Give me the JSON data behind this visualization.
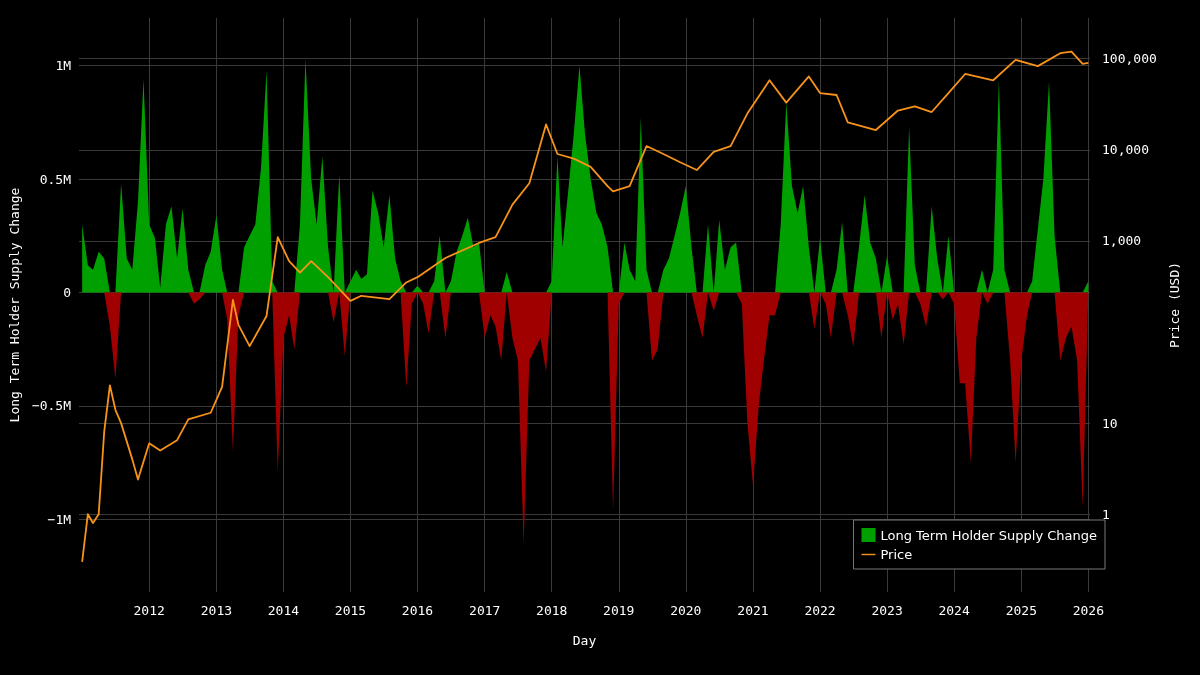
{
  "chart_data": {
    "type": "area",
    "xlabel": "Day",
    "ylabel": "Long Term Holder Supply Change",
    "y2label": "Price (USD)",
    "xlim": [
      "2010-12-15",
      "2026-01-10"
    ],
    "xticks": [
      "2012",
      "2013",
      "2014",
      "2015",
      "2016",
      "2017",
      "2018",
      "2019",
      "2020",
      "2021",
      "2022",
      "2023",
      "2024",
      "2025",
      "2026"
    ],
    "ylim": [
      -1320000,
      1210000
    ],
    "yticks": [
      {
        "value": -1000000,
        "label": "−1M"
      },
      {
        "value": -500000,
        "label": "−0.5M"
      },
      0,
      {
        "value": 500000,
        "label": "0.5M"
      },
      {
        "value": 1000000,
        "label": "1M"
      }
    ],
    "y2lim": [
      0.14,
      280000
    ],
    "y2ticks": [
      1,
      10,
      {
        "value": 1000,
        "label": "1,000"
      },
      {
        "value": 10000,
        "label": "10,000"
      },
      {
        "value": 100000,
        "label": "100,000"
      }
    ],
    "log": "y2",
    "grid": true,
    "legend": "bottom right",
    "marker": "none",
    "x": [
      "2011-01",
      "2011-02",
      "2011-03",
      "2011-04",
      "2011-05",
      "2011-06",
      "2011-07",
      "2011-08",
      "2011-09",
      "2011-10",
      "2011-11",
      "2011-12",
      "2012-01",
      "2012-02",
      "2012-03",
      "2012-04",
      "2012-05",
      "2012-06",
      "2012-07",
      "2012-08",
      "2012-09",
      "2012-10",
      "2012-11",
      "2012-12",
      "2013-01",
      "2013-02",
      "2013-03",
      "2013-04",
      "2013-05",
      "2013-06",
      "2013-07",
      "2013-08",
      "2013-09",
      "2013-10",
      "2013-11",
      "2013-12",
      "2014-01",
      "2014-02",
      "2014-03",
      "2014-04",
      "2014-05",
      "2014-06",
      "2014-07",
      "2014-08",
      "2014-09",
      "2014-10",
      "2014-11",
      "2014-12",
      "2015-01",
      "2015-02",
      "2015-03",
      "2015-04",
      "2015-05",
      "2015-06",
      "2015-07",
      "2015-08",
      "2015-09",
      "2015-10",
      "2015-11",
      "2015-12",
      "2016-01",
      "2016-02",
      "2016-03",
      "2016-04",
      "2016-05",
      "2016-06",
      "2016-07",
      "2016-08",
      "2016-09",
      "2016-10",
      "2016-11",
      "2016-12",
      "2017-01",
      "2017-02",
      "2017-03",
      "2017-04",
      "2017-05",
      "2017-06",
      "2017-07",
      "2017-08",
      "2017-09",
      "2017-10",
      "2017-11",
      "2017-12",
      "2018-01",
      "2018-02",
      "2018-03",
      "2018-04",
      "2018-05",
      "2018-06",
      "2018-07",
      "2018-08",
      "2018-09",
      "2018-10",
      "2018-11",
      "2018-12",
      "2019-01",
      "2019-02",
      "2019-03",
      "2019-04",
      "2019-05",
      "2019-06",
      "2019-07",
      "2019-08",
      "2019-09",
      "2019-10",
      "2019-11",
      "2019-12",
      "2020-01",
      "2020-02",
      "2020-03",
      "2020-04",
      "2020-05",
      "2020-06",
      "2020-07",
      "2020-08",
      "2020-09",
      "2020-10",
      "2020-11",
      "2020-12",
      "2021-01",
      "2021-02",
      "2021-03",
      "2021-04",
      "2021-05",
      "2021-06",
      "2021-07",
      "2021-08",
      "2021-09",
      "2021-10",
      "2021-11",
      "2021-12",
      "2022-01",
      "2022-02",
      "2022-03",
      "2022-04",
      "2022-05",
      "2022-06",
      "2022-07",
      "2022-08",
      "2022-09",
      "2022-10",
      "2022-11",
      "2022-12",
      "2023-01",
      "2023-02",
      "2023-03",
      "2023-04",
      "2023-05",
      "2023-06",
      "2023-07",
      "2023-08",
      "2023-09",
      "2023-10",
      "2023-11",
      "2023-12",
      "2024-01",
      "2024-02",
      "2024-03",
      "2024-04",
      "2024-05",
      "2024-06",
      "2024-07",
      "2024-08",
      "2024-09",
      "2024-10",
      "2024-11",
      "2024-12",
      "2025-01",
      "2025-02",
      "2025-03",
      "2025-04",
      "2025-05",
      "2025-06",
      "2025-07",
      "2025-08",
      "2025-09",
      "2025-10",
      "2025-11",
      "2025-12",
      "2026-01"
    ],
    "series": [
      {
        "name": "Long Term Holder Supply Change",
        "color": "#00a000",
        "values": [
          300000,
          120000,
          100000,
          180000,
          150000,
          0,
          0,
          480000,
          150000,
          100000,
          400000,
          940000,
          300000,
          240000,
          20000,
          300000,
          380000,
          150000,
          370000,
          100000,
          0,
          0,
          120000,
          180000,
          340000,
          100000,
          0,
          0,
          0,
          200000,
          250000,
          300000,
          550000,
          980000,
          50000,
          0,
          0,
          0,
          0,
          300000,
          1030000,
          500000,
          300000,
          600000,
          200000,
          0,
          520000,
          0,
          50000,
          100000,
          60000,
          80000,
          450000,
          350000,
          200000,
          430000,
          150000,
          50000,
          0,
          0,
          30000,
          0,
          0,
          50000,
          250000,
          0,
          50000,
          180000,
          250000,
          330000,
          200000,
          220000,
          0,
          0,
          0,
          0,
          90000,
          0,
          0,
          0,
          0,
          0,
          0,
          0,
          50000,
          600000,
          200000,
          450000,
          700000,
          1000000,
          700000,
          500000,
          350000,
          300000,
          200000,
          0,
          0,
          220000,
          100000,
          50000,
          770000,
          100000,
          0,
          0,
          100000,
          150000,
          250000,
          350000,
          470000,
          200000,
          0,
          0,
          300000,
          0,
          320000,
          100000,
          200000,
          220000,
          0,
          0,
          0,
          0,
          0,
          0,
          0,
          300000,
          840000,
          470000,
          350000,
          470000,
          200000,
          0,
          240000,
          0,
          0,
          100000,
          310000,
          0,
          0,
          200000,
          430000,
          220000,
          150000,
          0,
          160000,
          0,
          0,
          0,
          730000,
          120000,
          0,
          0,
          380000,
          150000,
          0,
          250000,
          0,
          0,
          0,
          0,
          0,
          100000,
          0,
          100000,
          940000,
          100000,
          0,
          0,
          0,
          0,
          50000,
          280000,
          500000,
          930000,
          250000,
          0,
          0,
          0,
          0,
          0,
          50000
        ]
      },
      {
        "color": "#a00000",
        "values": [
          0,
          0,
          0,
          0,
          0,
          -150000,
          -380000,
          0,
          0,
          0,
          0,
          0,
          0,
          0,
          0,
          0,
          0,
          0,
          0,
          0,
          -50000,
          -30000,
          0,
          0,
          0,
          0,
          -120000,
          -700000,
          -100000,
          0,
          0,
          0,
          0,
          0,
          0,
          -790000,
          -200000,
          -100000,
          -250000,
          0,
          0,
          0,
          0,
          0,
          0,
          -130000,
          0,
          -280000,
          0,
          0,
          0,
          0,
          0,
          0,
          0,
          0,
          0,
          0,
          -420000,
          -50000,
          0,
          -50000,
          -180000,
          0,
          0,
          -200000,
          0,
          0,
          0,
          0,
          0,
          0,
          -200000,
          -100000,
          -150000,
          -300000,
          0,
          -200000,
          -300000,
          -1110000,
          -300000,
          -250000,
          -200000,
          -350000,
          0,
          0,
          0,
          0,
          0,
          0,
          0,
          0,
          0,
          0,
          0,
          -960000,
          -50000,
          0,
          0,
          0,
          0,
          0,
          -300000,
          -250000,
          0,
          0,
          0,
          0,
          0,
          0,
          -100000,
          -200000,
          0,
          -80000,
          0,
          0,
          0,
          0,
          -50000,
          -570000,
          -850000,
          -500000,
          -300000,
          -100000,
          -100000,
          0,
          0,
          0,
          0,
          0,
          0,
          -160000,
          0,
          -50000,
          -200000,
          0,
          0,
          -100000,
          -240000,
          0,
          0,
          0,
          0,
          -200000,
          0,
          -120000,
          -50000,
          -230000,
          0,
          0,
          -50000,
          -150000,
          0,
          0,
          -30000,
          0,
          -50000,
          -400000,
          -400000,
          -750000,
          -200000,
          0,
          -50000,
          0,
          0,
          0,
          -300000,
          -750000,
          -300000,
          -100000,
          0,
          0,
          0,
          0,
          0,
          -300000,
          -200000,
          -150000,
          -300000,
          -950000,
          0
        ]
      },
      {
        "name": "Price",
        "type": "line",
        "axis": "y2",
        "color": "#f7931a",
        "x": [
          "2011-01",
          "2011-02",
          "2011-03",
          "2011-04",
          "2011-05",
          "2011-06",
          "2011-07",
          "2011-08",
          "2011-10",
          "2011-11",
          "2012-01",
          "2012-03",
          "2012-06",
          "2012-08",
          "2012-12",
          "2013-02",
          "2013-04",
          "2013-05",
          "2013-07",
          "2013-10",
          "2013-12",
          "2014-02",
          "2014-04",
          "2014-06",
          "2014-09",
          "2015-01",
          "2015-03",
          "2015-08",
          "2015-11",
          "2016-01",
          "2016-06",
          "2016-12",
          "2017-03",
          "2017-06",
          "2017-09",
          "2017-12",
          "2018-02",
          "2018-05",
          "2018-08",
          "2018-11",
          "2018-12",
          "2019-03",
          "2019-06",
          "2019-09",
          "2019-12",
          "2020-03",
          "2020-06",
          "2020-09",
          "2020-12",
          "2021-04",
          "2021-07",
          "2021-11",
          "2022-01",
          "2022-04",
          "2022-06",
          "2022-11",
          "2023-03",
          "2023-06",
          "2023-09",
          "2023-12",
          "2024-03",
          "2024-08",
          "2024-12",
          "2025-04",
          "2025-08",
          "2025-10",
          "2025-12",
          "2026-01"
        ],
        "values": [
          0.3,
          1,
          0.8,
          1,
          8,
          26,
          14,
          10,
          4,
          2.4,
          6,
          5,
          6.5,
          11,
          13,
          25,
          225,
          120,
          70,
          150,
          1100,
          600,
          450,
          600,
          400,
          220,
          250,
          230,
          350,
          400,
          650,
          950,
          1100,
          2500,
          4300,
          19000,
          9000,
          8000,
          6500,
          4000,
          3500,
          4000,
          11000,
          9000,
          7300,
          6000,
          9500,
          11000,
          25000,
          58000,
          33000,
          64000,
          42000,
          40000,
          20000,
          16500,
          27000,
          30000,
          26000,
          42000,
          68000,
          58000,
          97000,
          83000,
          115000,
          120000,
          88000,
          90000
        ]
      }
    ]
  }
}
